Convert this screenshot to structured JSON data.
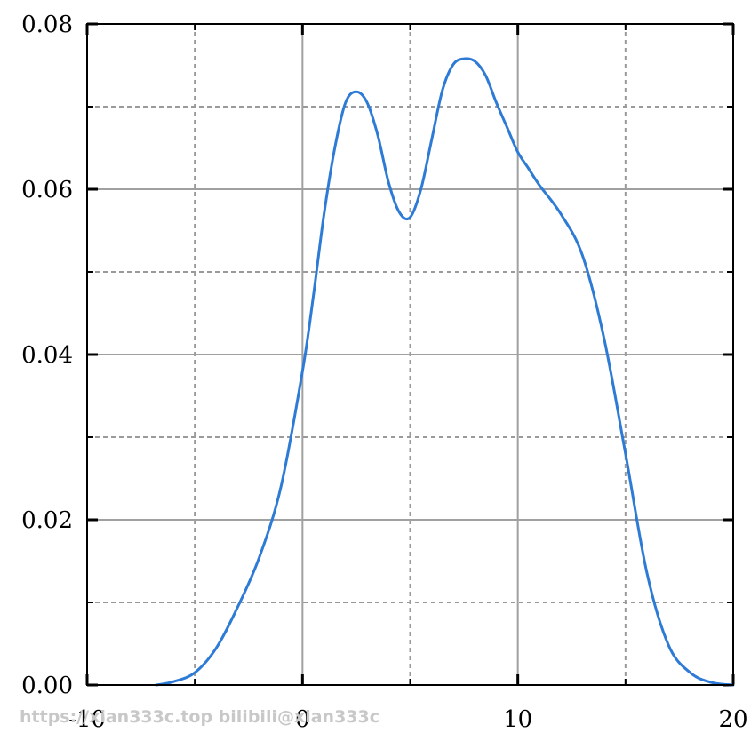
{
  "chart_data": {
    "type": "line",
    "title": "",
    "xlabel": "",
    "ylabel": "",
    "xlim": [
      -10,
      20
    ],
    "ylim": [
      0,
      0.08
    ],
    "grid": true,
    "x_major_ticks": [
      -10,
      0,
      10,
      20
    ],
    "x_major_tick_labels": [
      "-10",
      "0",
      "10",
      "20"
    ],
    "x_minor_ticks": [
      -5,
      5,
      15
    ],
    "y_major_ticks": [
      0.0,
      0.02,
      0.04,
      0.06,
      0.08
    ],
    "y_major_tick_labels": [
      "0.00",
      "0.02",
      "0.04",
      "0.06",
      "0.08"
    ],
    "y_minor_ticks": [
      0.01,
      0.03,
      0.05,
      0.07
    ],
    "series": [
      {
        "color": "#2e7bd6",
        "x": [
          -6.8,
          -6,
          -5,
          -4,
          -3,
          -2,
          -1,
          0,
          0.5,
          1,
          1.5,
          2,
          2.5,
          3,
          3.5,
          4,
          4.5,
          5,
          5.5,
          6,
          6.5,
          7,
          7.5,
          8,
          8.5,
          9,
          9.5,
          10,
          10.5,
          11,
          12,
          13,
          14,
          15,
          16,
          17,
          18,
          19,
          20
        ],
        "y": [
          0.0,
          0.0004,
          0.0015,
          0.0045,
          0.0095,
          0.0155,
          0.024,
          0.038,
          0.047,
          0.057,
          0.065,
          0.0705,
          0.0718,
          0.0705,
          0.0665,
          0.0608,
          0.0572,
          0.0566,
          0.06,
          0.066,
          0.072,
          0.0751,
          0.0758,
          0.0755,
          0.0738,
          0.0705,
          0.0675,
          0.0645,
          0.0625,
          0.0605,
          0.057,
          0.052,
          0.042,
          0.028,
          0.0135,
          0.0048,
          0.0015,
          0.0003,
          0.0
        ]
      }
    ]
  },
  "watermark": "https://xian333c.top bilibili@xian333c"
}
